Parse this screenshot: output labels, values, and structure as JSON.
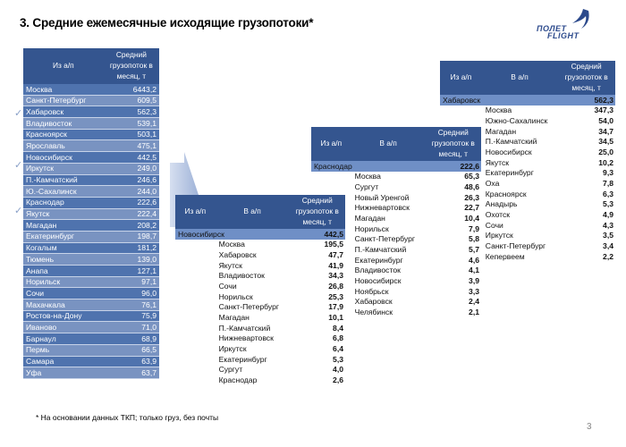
{
  "title": "3. Средние ежемесячные исходящие грузопотоки*",
  "logo": {
    "line1": "ПОЛЕТ",
    "line2": "FLIGHT"
  },
  "footnote": "* На основании данных ТКП; только груз, без почты",
  "page_number": "3",
  "main_table": {
    "headers": {
      "from": "Из а/п",
      "avg": "Средний грузопоток в месяц, т"
    },
    "rows": [
      {
        "city": "Москва",
        "value": "6443,2"
      },
      {
        "city": "Санкт-Петербург",
        "value": "609,5"
      },
      {
        "city": "Хабаровск",
        "value": "562,3"
      },
      {
        "city": "Владивосток",
        "value": "539,1"
      },
      {
        "city": "Красноярск",
        "value": "503,1"
      },
      {
        "city": "Ярославль",
        "value": "475,1"
      },
      {
        "city": "Новосибирск",
        "value": "442,5"
      },
      {
        "city": "Иркутск",
        "value": "249,0"
      },
      {
        "city": "П.-Камчатский",
        "value": "246,6"
      },
      {
        "city": "Ю.-Сахалинск",
        "value": "244,0"
      },
      {
        "city": "Краснодар",
        "value": "222,6"
      },
      {
        "city": "Якутск",
        "value": "222,4"
      },
      {
        "city": "Магадан",
        "value": "208,2"
      },
      {
        "city": "Екатеринбург",
        "value": "198,7"
      },
      {
        "city": "Когалым",
        "value": "181,2"
      },
      {
        "city": "Тюмень",
        "value": "139,0"
      },
      {
        "city": "Анапа",
        "value": "127,1"
      },
      {
        "city": "Норильск",
        "value": "97,1"
      },
      {
        "city": "Сочи",
        "value": "96,0"
      },
      {
        "city": "Махачкала",
        "value": "76,1"
      },
      {
        "city": "Ростов-на-Дону",
        "value": "75,9"
      },
      {
        "city": "Иваново",
        "value": "71,0"
      },
      {
        "city": "Барнаул",
        "value": "68,9"
      },
      {
        "city": "Пермь",
        "value": "66,5"
      },
      {
        "city": "Самара",
        "value": "63,9"
      },
      {
        "city": "Уфа",
        "value": "63,7"
      }
    ]
  },
  "detail_tables": [
    {
      "id": "novosibirsk",
      "headers": {
        "from": "Из а/п",
        "to": "В а/п",
        "avg": "Средний грузопоток в месяц, т"
      },
      "origin": {
        "city": "Новосибирск",
        "value": "442,5"
      },
      "rows": [
        {
          "city": "Москва",
          "value": "195,5"
        },
        {
          "city": "Хабаровск",
          "value": "47,7"
        },
        {
          "city": "Якутск",
          "value": "41,9"
        },
        {
          "city": "Владивосток",
          "value": "34,3"
        },
        {
          "city": "Сочи",
          "value": "26,8"
        },
        {
          "city": "Норильск",
          "value": "25,3"
        },
        {
          "city": "Санкт-Петербург",
          "value": "17,9"
        },
        {
          "city": "Магадан",
          "value": "10,1"
        },
        {
          "city": "П.-Камчатский",
          "value": "8,4"
        },
        {
          "city": "Нижневартовск",
          "value": "6,8"
        },
        {
          "city": "Иркутск",
          "value": "6,4"
        },
        {
          "city": "Екатеринбург",
          "value": "5,3"
        },
        {
          "city": "Сургут",
          "value": "4,0"
        },
        {
          "city": "Краснодар",
          "value": "2,6"
        }
      ]
    },
    {
      "id": "krasnodar",
      "headers": {
        "from": "Из а/п",
        "to": "В а/п",
        "avg": "Средний грузопоток в месяц, т"
      },
      "origin": {
        "city": "Краснодар",
        "value": "222,6"
      },
      "rows": [
        {
          "city": "Москва",
          "value": "65,3"
        },
        {
          "city": "Сургут",
          "value": "48,6"
        },
        {
          "city": "Новый Уренгой",
          "value": "26,3"
        },
        {
          "city": "Нижневартовск",
          "value": "22,7"
        },
        {
          "city": "Магадан",
          "value": "10,4"
        },
        {
          "city": "Норильск",
          "value": "7,9"
        },
        {
          "city": "Санкт-Петербург",
          "value": "5,8"
        },
        {
          "city": "П.-Камчатский",
          "value": "5,7"
        },
        {
          "city": "Екатеринбург",
          "value": "4,6"
        },
        {
          "city": "Владивосток",
          "value": "4,1"
        },
        {
          "city": "Новосибирск",
          "value": "3,9"
        },
        {
          "city": "Ноябрьск",
          "value": "3,3"
        },
        {
          "city": "Хабаровск",
          "value": "2,4"
        },
        {
          "city": "Челябинск",
          "value": "2,1"
        }
      ]
    },
    {
      "id": "khabarovsk",
      "headers": {
        "from": "Из а/п",
        "to": "В а/п",
        "avg": "Средний грузопоток в месяц, т"
      },
      "origin": {
        "city": "Хабаровск",
        "value": "562,3"
      },
      "rows": [
        {
          "city": "Москва",
          "value": "347,3"
        },
        {
          "city": "Южно-Сахалинск",
          "value": "54,0"
        },
        {
          "city": "Магадан",
          "value": "34,7"
        },
        {
          "city": "П.-Камчатский",
          "value": "34,5"
        },
        {
          "city": "Новосибирск",
          "value": "25,0"
        },
        {
          "city": "Якутск",
          "value": "10,2"
        },
        {
          "city": "Екатеринбург",
          "value": "9,3"
        },
        {
          "city": "Оха",
          "value": "7,8"
        },
        {
          "city": "Красноярск",
          "value": "6,3"
        },
        {
          "city": "Анадырь",
          "value": "5,3"
        },
        {
          "city": "Охотск",
          "value": "4,9"
        },
        {
          "city": "Сочи",
          "value": "4,3"
        },
        {
          "city": "Иркутск",
          "value": "3,5"
        },
        {
          "city": "Санкт-Петербург",
          "value": "3,4"
        },
        {
          "city": "Кепервеем",
          "value": "2,2"
        }
      ]
    }
  ]
}
